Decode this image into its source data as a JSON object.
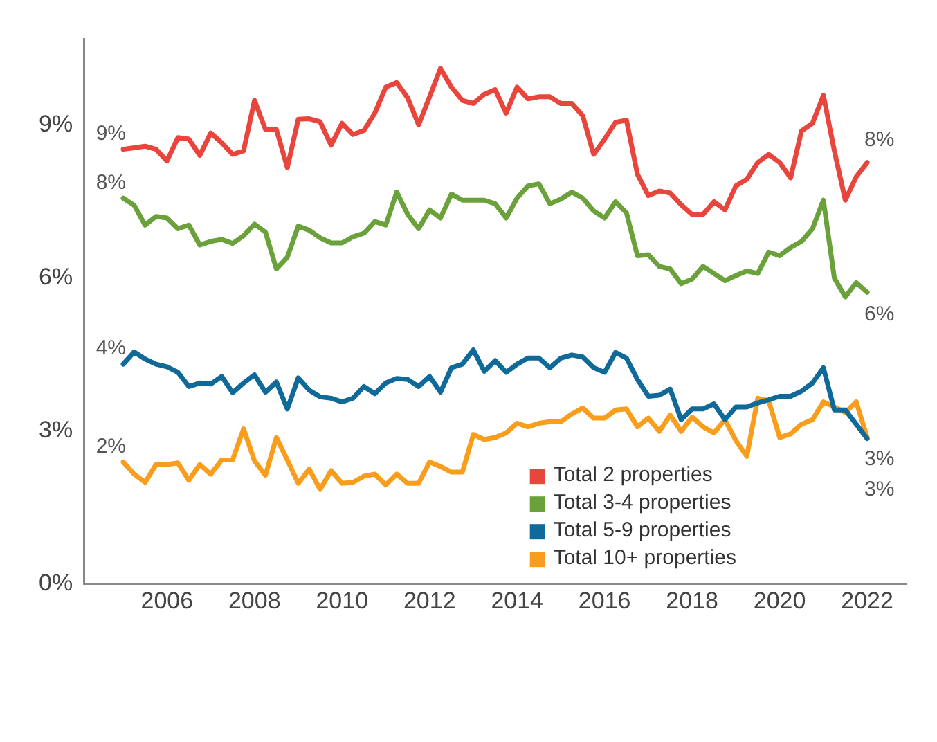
{
  "chart_data": {
    "type": "line",
    "x": [
      2005,
      2005.25,
      2005.5,
      2005.75,
      2006,
      2006.25,
      2006.5,
      2006.75,
      2007,
      2007.25,
      2007.5,
      2007.75,
      2008,
      2008.25,
      2008.5,
      2008.75,
      2009,
      2009.25,
      2009.5,
      2009.75,
      2010,
      2010.25,
      2010.5,
      2010.75,
      2011,
      2011.25,
      2011.5,
      2011.75,
      2012,
      2012.25,
      2012.5,
      2012.75,
      2013,
      2013.25,
      2013.5,
      2013.75,
      2014,
      2014.25,
      2014.5,
      2014.75,
      2015,
      2015.25,
      2015.5,
      2015.75,
      2016,
      2016.25,
      2016.5,
      2016.75,
      2017,
      2017.25,
      2017.5,
      2017.75,
      2018,
      2018.25,
      2018.5,
      2018.75,
      2019,
      2019.25,
      2019.5,
      2019.75,
      2020,
      2020.25,
      2020.5,
      2020.75,
      2021,
      2021.25,
      2021.5,
      2021.75,
      2022
    ],
    "series": [
      {
        "name": "Total 2 properties",
        "color": "#e8453c",
        "values": [
          8.53,
          8.56,
          8.59,
          8.53,
          8.3,
          8.76,
          8.73,
          8.41,
          8.85,
          8.66,
          8.43,
          8.5,
          9.49,
          8.92,
          8.92,
          8.17,
          9.12,
          9.13,
          9.07,
          8.61,
          9.04,
          8.82,
          8.9,
          9.24,
          9.75,
          9.84,
          9.54,
          9.01,
          9.56,
          10.12,
          9.75,
          9.49,
          9.43,
          9.61,
          9.7,
          9.24,
          9.75,
          9.52,
          9.56,
          9.56,
          9.43,
          9.43,
          9.19,
          8.43,
          8.73,
          9.06,
          9.1,
          8.04,
          7.62,
          7.71,
          7.67,
          7.44,
          7.25,
          7.25,
          7.5,
          7.34,
          7.81,
          7.94,
          8.27,
          8.43,
          8.27,
          7.97,
          8.89,
          9.04,
          9.59,
          8.5,
          7.53,
          7.99,
          8.27
        ],
        "value_labels": [
          "9%",
          null,
          null,
          null,
          null,
          null,
          null,
          null,
          null,
          null,
          null,
          null,
          null,
          null,
          null,
          null,
          null,
          null,
          null,
          null,
          null,
          null,
          null,
          null,
          null,
          null,
          null,
          null,
          null,
          null,
          null,
          null,
          null,
          null,
          null,
          null,
          null,
          null,
          null,
          null,
          null,
          null,
          null,
          null,
          null,
          null,
          null,
          null,
          null,
          null,
          null,
          null,
          null,
          null,
          null,
          null,
          null,
          null,
          null,
          null,
          null,
          null,
          null,
          null,
          null,
          null,
          null,
          null,
          "8%"
        ]
      },
      {
        "name": "Total 3-4 properties",
        "color": "#6aa13a",
        "values": [
          7.57,
          7.43,
          7.04,
          7.21,
          7.18,
          6.97,
          7.04,
          6.65,
          6.72,
          6.76,
          6.68,
          6.83,
          7.06,
          6.9,
          6.18,
          6.41,
          7.02,
          6.94,
          6.79,
          6.69,
          6.69,
          6.81,
          6.88,
          7.11,
          7.04,
          7.69,
          7.25,
          6.97,
          7.34,
          7.18,
          7.65,
          7.53,
          7.53,
          7.53,
          7.46,
          7.18,
          7.57,
          7.81,
          7.85,
          7.46,
          7.55,
          7.69,
          7.57,
          7.32,
          7.18,
          7.5,
          7.28,
          6.44,
          6.46,
          6.23,
          6.18,
          5.89,
          5.98,
          6.23,
          6.09,
          5.95,
          6.05,
          6.14,
          6.09,
          6.51,
          6.44,
          6.6,
          6.72,
          6.97,
          7.53,
          6.0,
          5.63,
          5.91,
          5.72
        ],
        "value_labels": [
          "8%",
          null,
          null,
          null,
          null,
          null,
          null,
          null,
          null,
          null,
          null,
          null,
          null,
          null,
          null,
          null,
          null,
          null,
          null,
          null,
          null,
          null,
          null,
          null,
          null,
          null,
          null,
          null,
          null,
          null,
          null,
          null,
          null,
          null,
          null,
          null,
          null,
          null,
          null,
          null,
          null,
          null,
          null,
          null,
          null,
          null,
          null,
          null,
          null,
          null,
          null,
          null,
          null,
          null,
          null,
          null,
          null,
          null,
          null,
          null,
          null,
          null,
          null,
          null,
          null,
          null,
          null,
          null,
          "6%"
        ]
      },
      {
        "name": "Total 5-9 properties",
        "color": "#0f6a99",
        "values": [
          4.31,
          4.55,
          4.41,
          4.31,
          4.26,
          4.15,
          3.87,
          3.94,
          3.92,
          4.07,
          3.75,
          3.94,
          4.1,
          3.76,
          3.96,
          3.43,
          4.04,
          3.8,
          3.67,
          3.64,
          3.57,
          3.64,
          3.87,
          3.73,
          3.94,
          4.03,
          4.01,
          3.87,
          4.07,
          3.76,
          4.24,
          4.31,
          4.59,
          4.17,
          4.38,
          4.15,
          4.31,
          4.43,
          4.43,
          4.24,
          4.43,
          4.49,
          4.45,
          4.24,
          4.15,
          4.54,
          4.43,
          4.01,
          3.68,
          3.7,
          3.82,
          3.22,
          3.43,
          3.43,
          3.53,
          3.22,
          3.47,
          3.47,
          3.55,
          3.61,
          3.68,
          3.68,
          3.78,
          3.94,
          4.24,
          3.41,
          3.41,
          3.13,
          2.85
        ],
        "value_labels": [
          "4%",
          null,
          null,
          null,
          null,
          null,
          null,
          null,
          null,
          null,
          null,
          null,
          null,
          null,
          null,
          null,
          null,
          null,
          null,
          null,
          null,
          null,
          null,
          null,
          null,
          null,
          null,
          null,
          null,
          null,
          null,
          null,
          null,
          null,
          null,
          null,
          null,
          null,
          null,
          null,
          null,
          null,
          null,
          null,
          null,
          null,
          null,
          null,
          null,
          null,
          null,
          null,
          null,
          null,
          null,
          null,
          null,
          null,
          null,
          null,
          null,
          null,
          null,
          null,
          null,
          null,
          null,
          null,
          "3%"
        ]
      },
      {
        "name": "Total 10+ properties",
        "color": "#f99d1c",
        "values": [
          2.39,
          2.15,
          1.99,
          2.34,
          2.34,
          2.37,
          2.03,
          2.34,
          2.15,
          2.43,
          2.43,
          3.04,
          2.41,
          2.13,
          2.87,
          2.43,
          1.97,
          2.25,
          1.85,
          2.22,
          1.97,
          1.99,
          2.11,
          2.15,
          1.94,
          2.15,
          1.97,
          1.97,
          2.39,
          2.3,
          2.19,
          2.19,
          2.93,
          2.83,
          2.87,
          2.96,
          3.15,
          3.08,
          3.15,
          3.18,
          3.18,
          3.33,
          3.45,
          3.25,
          3.25,
          3.41,
          3.43,
          3.08,
          3.25,
          2.99,
          3.31,
          2.99,
          3.27,
          3.08,
          2.96,
          3.22,
          2.81,
          2.5,
          3.64,
          3.59,
          2.87,
          2.94,
          3.13,
          3.22,
          3.57,
          3.47,
          3.36,
          3.57,
          2.87
        ],
        "value_labels": [
          "2%",
          null,
          null,
          null,
          null,
          null,
          null,
          null,
          null,
          null,
          null,
          null,
          null,
          null,
          null,
          null,
          null,
          null,
          null,
          null,
          null,
          null,
          null,
          null,
          null,
          null,
          null,
          null,
          null,
          null,
          null,
          null,
          null,
          null,
          null,
          null,
          null,
          null,
          null,
          null,
          null,
          null,
          null,
          null,
          null,
          null,
          null,
          null,
          null,
          null,
          null,
          null,
          null,
          null,
          null,
          null,
          null,
          null,
          null,
          null,
          null,
          null,
          null,
          null,
          null,
          null,
          null,
          null,
          "3%"
        ]
      }
    ],
    "xlim": [
      2004.1,
      2022.9
    ],
    "xticks": [
      2006,
      2008,
      2010,
      2012,
      2014,
      2016,
      2018,
      2020,
      2022
    ],
    "ylim": [
      0,
      10.7
    ],
    "yticks": [
      {
        "value": 0,
        "label": "0%"
      },
      {
        "value": 3,
        "label": "3%"
      },
      {
        "value": 6,
        "label": "6%"
      },
      {
        "value": 9,
        "label": "9%"
      }
    ],
    "grid": false,
    "legend": "bottom right",
    "marker": "none",
    "line_style": "solid"
  }
}
